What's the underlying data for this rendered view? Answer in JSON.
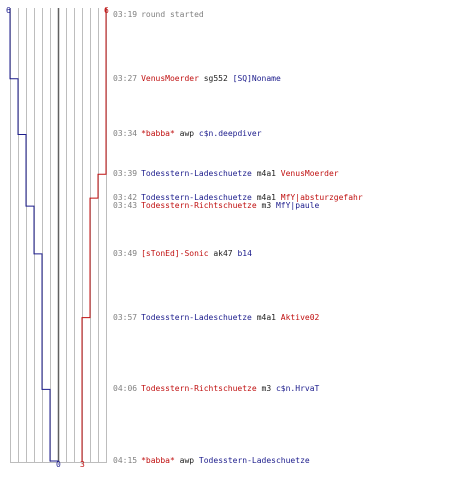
{
  "colors": {
    "team_a": "#1c1c8c",
    "team_b": "#c01010",
    "grid": "#bdbdbd",
    "center": "#606060",
    "time": "#808080"
  },
  "scores": {
    "team_a_top": "6",
    "team_b_top": "6",
    "team_a_bottom": "0",
    "team_b_bottom": "3"
  },
  "events": [
    {
      "time": "03:19",
      "parts": [
        {
          "text": "round started",
          "cls": "info"
        }
      ]
    },
    {
      "time": "03:27",
      "parts": [
        {
          "text": "VenusMoerder",
          "cls": "red"
        },
        {
          "text": "sg552",
          "cls": "plain"
        },
        {
          "text": "[SQ]Noname",
          "cls": "blue"
        }
      ]
    },
    {
      "time": "03:34",
      "parts": [
        {
          "text": "*babba*",
          "cls": "red"
        },
        {
          "text": "awp",
          "cls": "plain"
        },
        {
          "text": "c$n.deepdiver",
          "cls": "blue"
        }
      ]
    },
    {
      "time": "03:39",
      "parts": [
        {
          "text": "Todesstern-Ladeschuetze",
          "cls": "blue"
        },
        {
          "text": "m4a1",
          "cls": "plain"
        },
        {
          "text": "VenusMoerder",
          "cls": "red"
        }
      ]
    },
    {
      "time": "03:42",
      "parts": [
        {
          "text": "Todesstern-Ladeschuetze",
          "cls": "blue"
        },
        {
          "text": "m4a1",
          "cls": "plain"
        },
        {
          "text": "MfY|absturzgefahr",
          "cls": "red"
        }
      ]
    },
    {
      "time": "03:43",
      "parts": [
        {
          "text": "Todesstern-Richtschuetze",
          "cls": "red"
        },
        {
          "text": "m3",
          "cls": "plain"
        },
        {
          "text": "MfY|paule",
          "cls": "blue"
        }
      ]
    },
    {
      "time": "03:49",
      "parts": [
        {
          "text": "[sTonEd]-Sonic",
          "cls": "red"
        },
        {
          "text": "ak47",
          "cls": "plain"
        },
        {
          "text": "b14",
          "cls": "blue"
        }
      ]
    },
    {
      "time": "03:57",
      "parts": [
        {
          "text": "Todesstern-Ladeschuetze",
          "cls": "blue"
        },
        {
          "text": "m4a1",
          "cls": "plain"
        },
        {
          "text": "Aktive02",
          "cls": "red"
        }
      ]
    },
    {
      "time": "04:06",
      "parts": [
        {
          "text": "Todesstern-Richtschuetze",
          "cls": "red"
        },
        {
          "text": "m3",
          "cls": "plain"
        },
        {
          "text": "c$n.HrvaT",
          "cls": "blue"
        }
      ]
    },
    {
      "time": "04:15",
      "parts": [
        {
          "text": "*babba*",
          "cls": "red"
        },
        {
          "text": "awp",
          "cls": "plain"
        },
        {
          "text": "Todesstern-Ladeschuetze",
          "cls": "blue"
        }
      ]
    }
  ],
  "chart_data": {
    "type": "line",
    "title": "",
    "xlabel": "",
    "ylabel": "",
    "x": [
      "03:19",
      "03:27",
      "03:34",
      "03:39",
      "03:42",
      "03:43",
      "03:49",
      "03:57",
      "04:06",
      "04:15"
    ],
    "series": [
      {
        "values": [
          6,
          5,
          4,
          4,
          4,
          3,
          2,
          2,
          1,
          0
        ]
      },
      {
        "values": [
          6,
          6,
          6,
          5,
          4,
          4,
          4,
          3,
          3,
          3
        ]
      }
    ],
    "ylim": [
      0,
      6
    ]
  }
}
